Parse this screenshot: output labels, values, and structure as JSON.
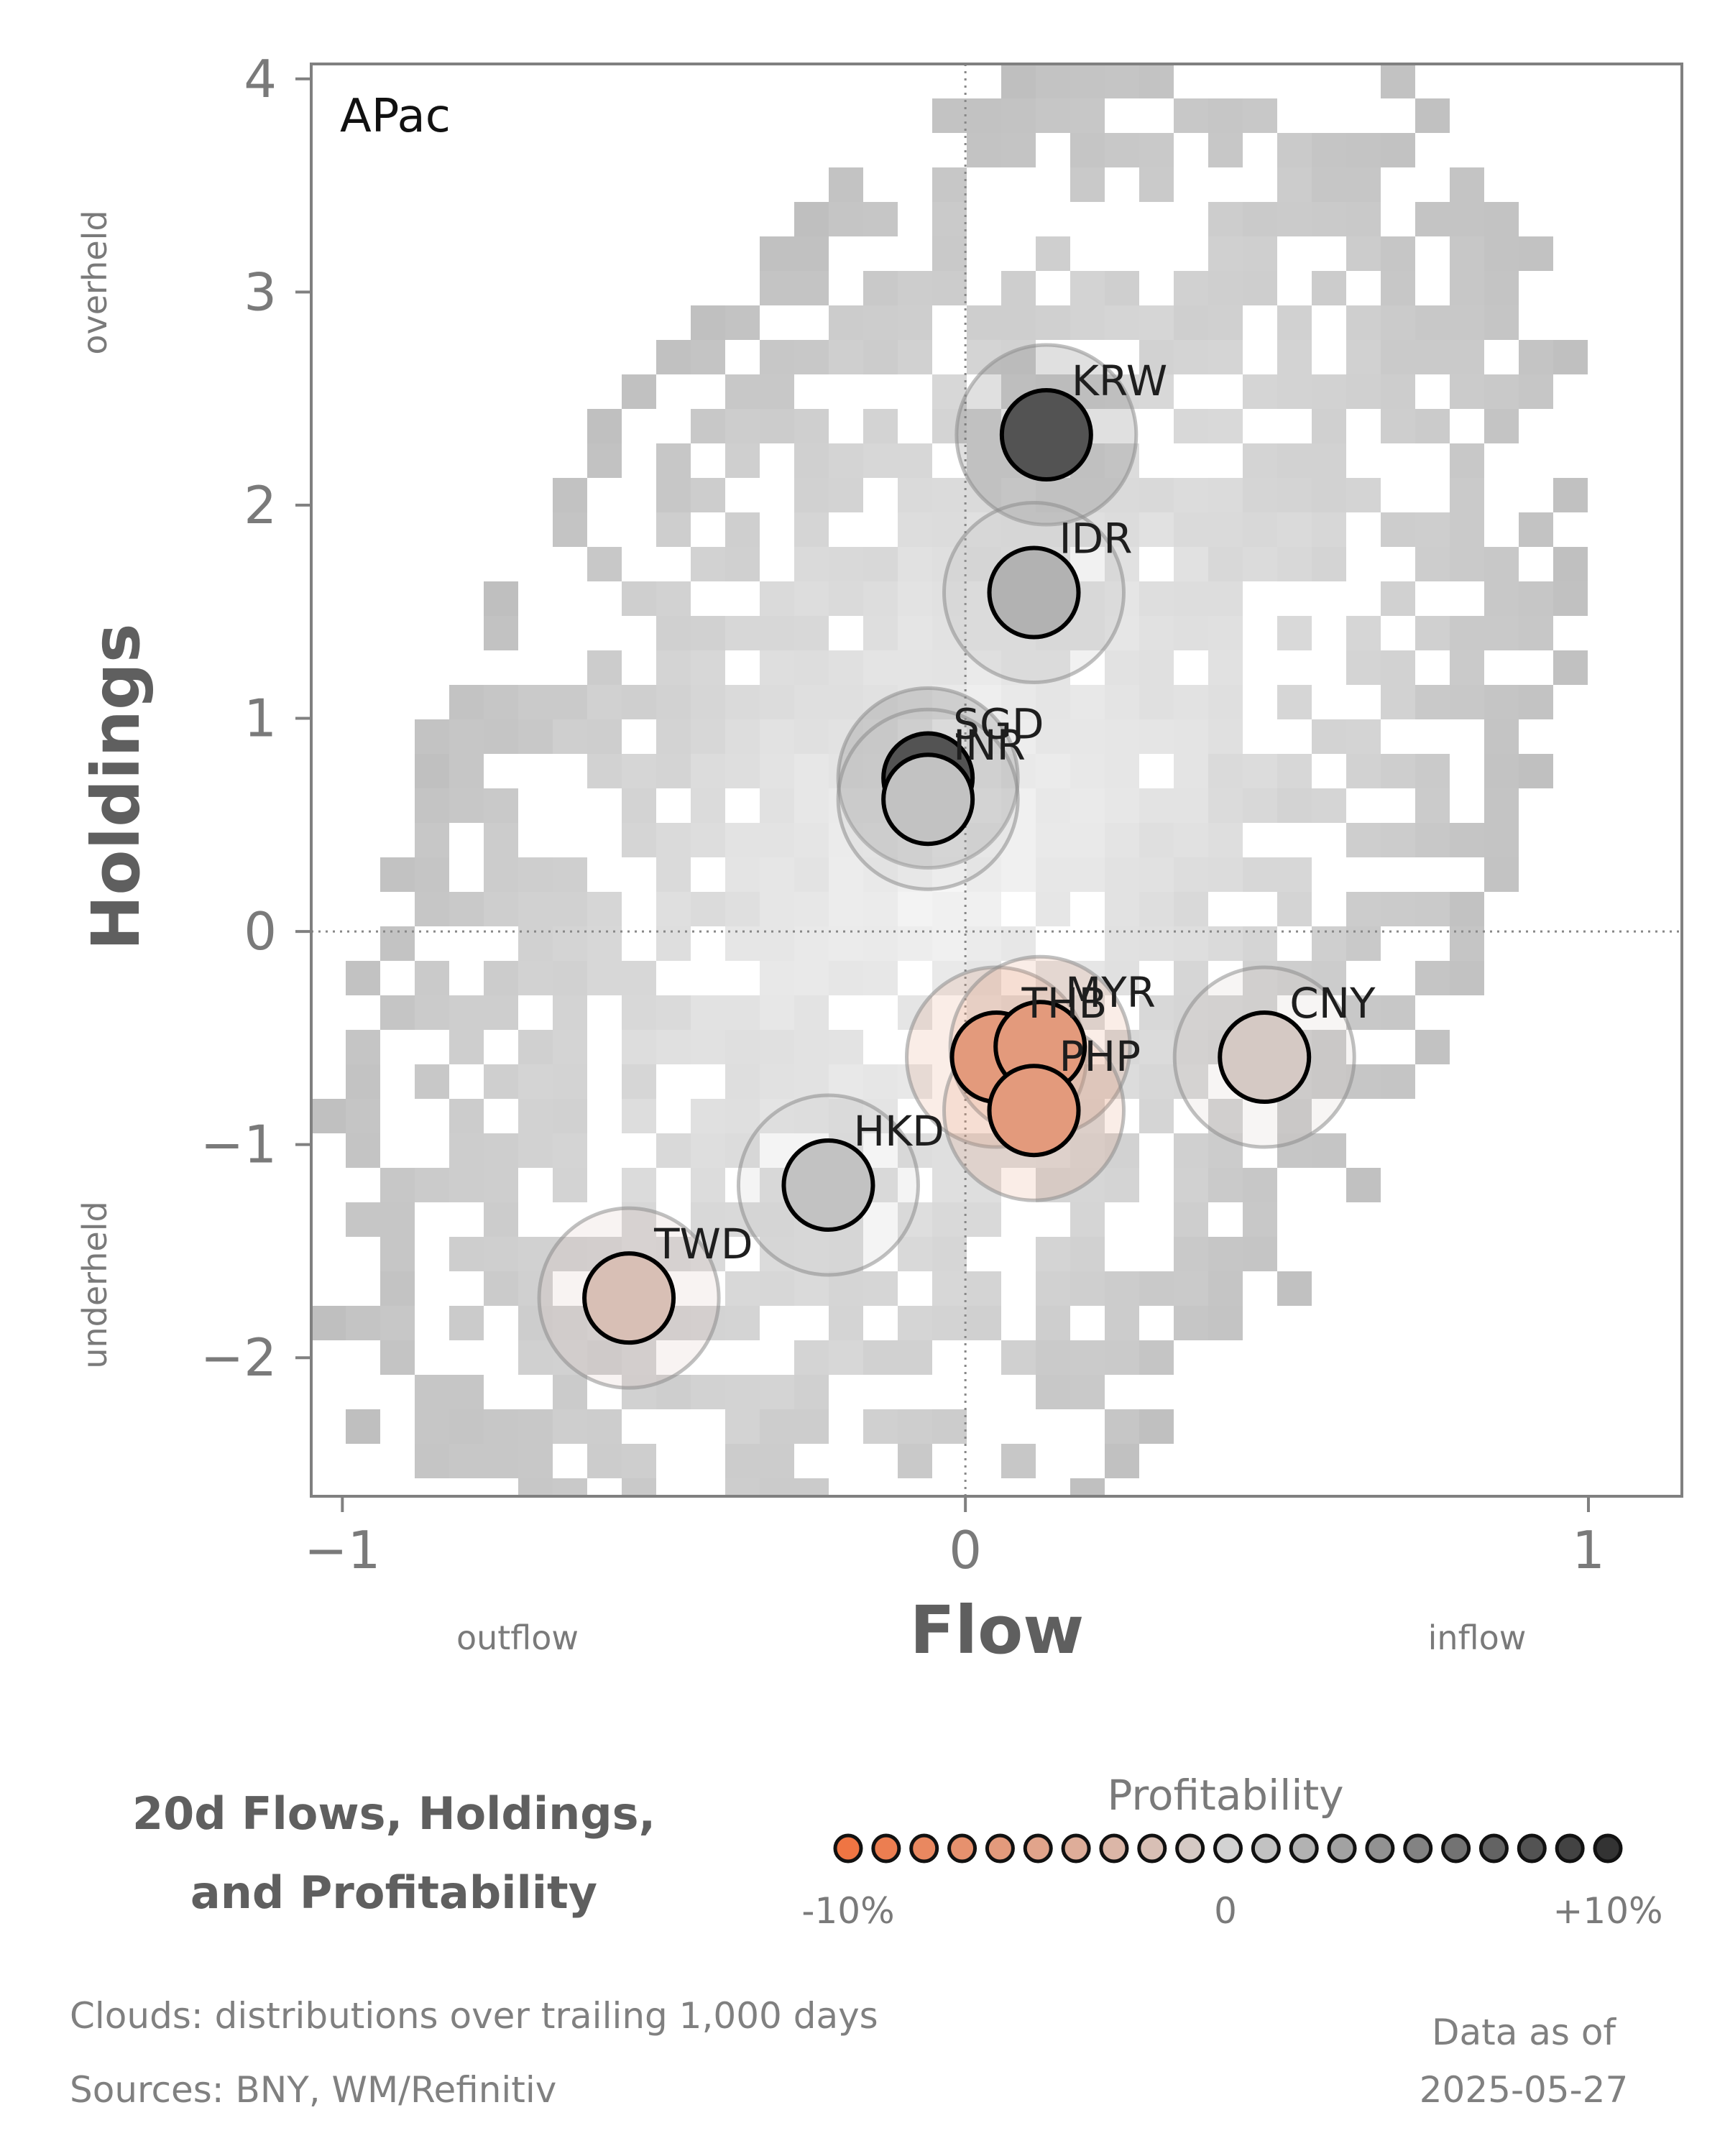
{
  "chart_data": {
    "type": "scatter",
    "region": "APac",
    "xlabel": "Flow",
    "ylabel": "Holdings",
    "xlim": [
      -1.05,
      1.15
    ],
    "ylim": [
      -2.65,
      4.07
    ],
    "xticks": [
      {
        "v": -1,
        "label": "−1"
      },
      {
        "v": 0,
        "label": "0"
      },
      {
        "v": 1,
        "label": "1"
      }
    ],
    "yticks": [
      {
        "v": -2,
        "label": "−2"
      },
      {
        "v": -1,
        "label": "−1"
      },
      {
        "v": 0,
        "label": "0"
      },
      {
        "v": 1,
        "label": "1"
      },
      {
        "v": 2,
        "label": "2"
      },
      {
        "v": 3,
        "label": "3"
      },
      {
        "v": 4,
        "label": "4"
      }
    ],
    "x_annotations": {
      "left": "outflow",
      "right": "inflow"
    },
    "y_annotations": {
      "top": "overheld",
      "bottom": "underheld"
    },
    "reference_lines": {
      "x": 0,
      "y": 0
    },
    "points": [
      {
        "label": "KRW",
        "flow": 0.13,
        "holdings": 2.33,
        "profitability": 8
      },
      {
        "label": "IDR",
        "flow": 0.11,
        "holdings": 1.59,
        "profitability": 2
      },
      {
        "label": "SGD",
        "flow": -0.06,
        "holdings": 0.72,
        "profitability": 8
      },
      {
        "label": "INR",
        "flow": -0.06,
        "holdings": 0.62,
        "profitability": 1
      },
      {
        "label": "THB",
        "flow": 0.05,
        "holdings": -0.59,
        "profitability": -6
      },
      {
        "label": "MYR",
        "flow": 0.12,
        "holdings": -0.54,
        "profitability": -6
      },
      {
        "label": "PHP",
        "flow": 0.11,
        "holdings": -0.84,
        "profitability": -6
      },
      {
        "label": "CNY",
        "flow": 0.48,
        "holdings": -0.59,
        "profitability": -1
      },
      {
        "label": "HKD",
        "flow": -0.22,
        "holdings": -1.19,
        "profitability": 1
      },
      {
        "label": "TWD",
        "flow": -0.54,
        "holdings": -1.72,
        "profitability": -2
      }
    ],
    "color_scale": {
      "title": "Profitability",
      "min": -10,
      "max": 10,
      "low_color": "#ef7543",
      "mid_color": "#d2d2d2",
      "high_color": "#333333",
      "ticks": [
        "-10%",
        "0",
        "+10%"
      ]
    },
    "background": "Clouds: density of distributions over trailing 1,000 days"
  },
  "legend": {
    "title_line1": "20d Flows, Holdings,",
    "title_line2": "and Profitability",
    "colorbar_caption": "Profitability",
    "tick_low": "-10%",
    "tick_mid": "0",
    "tick_high": "+10%"
  },
  "footer": {
    "clouds": "Clouds:  distributions over trailing 1,000 days",
    "sources": "Sources:  BNY, WM/Refinitiv",
    "asof_label": "Data as of",
    "asof_date": "2025-05-27"
  }
}
